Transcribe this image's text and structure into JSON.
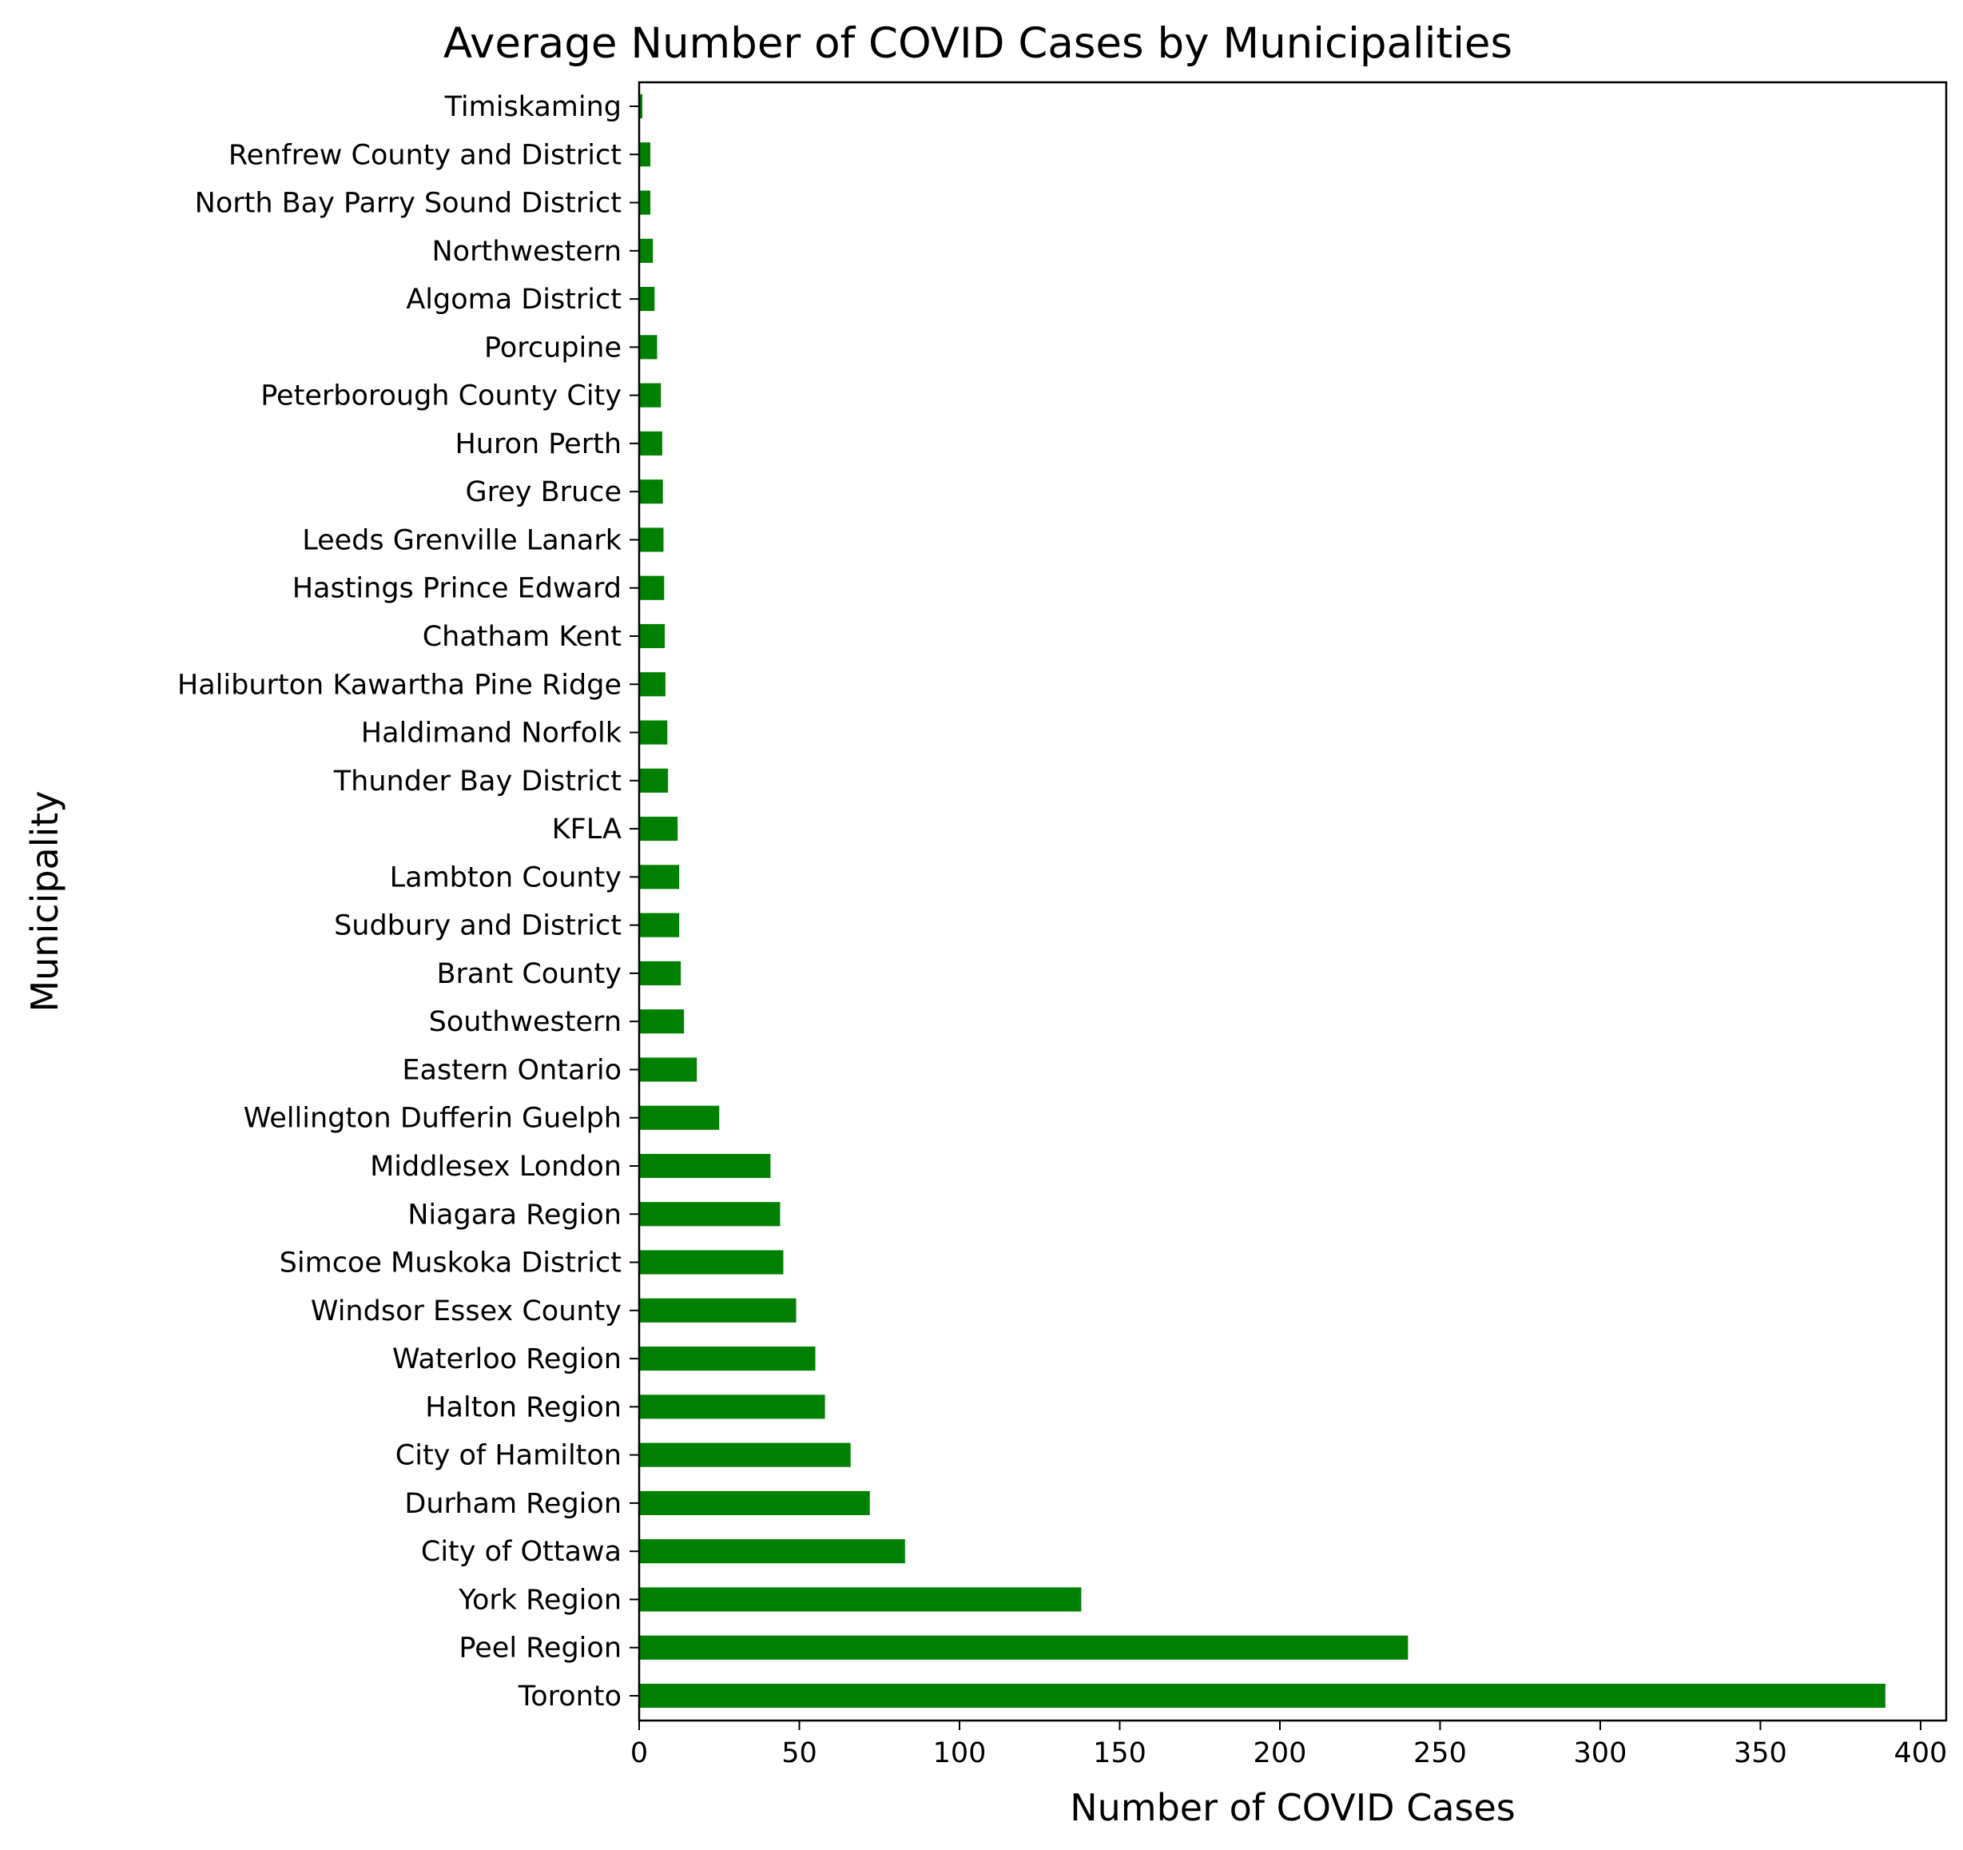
{
  "chart_data": {
    "type": "bar",
    "orientation": "horizontal",
    "title": "Average Number of COVID Cases by Municipalities",
    "xlabel": "Number of COVID Cases",
    "ylabel": "Municipality",
    "xlim": [
      0,
      408
    ],
    "xticks": [
      0,
      50,
      100,
      150,
      200,
      250,
      300,
      350,
      400
    ],
    "bar_color": "#008000",
    "grid": false,
    "legend": "none",
    "categories": [
      "Toronto",
      "Peel Region",
      "York Region",
      "City of Ottawa",
      "Durham Region",
      "City of Hamilton",
      "Halton Region",
      "Waterloo Region",
      "Windsor Essex County",
      "Simcoe Muskoka District",
      "Niagara Region",
      "Middlesex London",
      "Wellington Dufferin Guelph",
      "Eastern Ontario",
      "Southwestern",
      "Brant County",
      "Sudbury and District",
      "Lambton County",
      "KFLA",
      "Thunder Bay District",
      "Haldimand Norfolk",
      "Haliburton Kawartha Pine Ridge",
      "Chatham Kent",
      "Hastings Prince Edward",
      "Leeds Grenville Lanark",
      "Grey Bruce",
      "Huron Perth",
      "Peterborough County City",
      "Porcupine",
      "Algoma District",
      "Northwestern",
      "North Bay Parry Sound District",
      "Renfrew County and District",
      "Timiskaming"
    ],
    "values": [
      389,
      240,
      138,
      83,
      72,
      66,
      58,
      55,
      49,
      45,
      44,
      41,
      25,
      18,
      14,
      13,
      12.5,
      12.5,
      12,
      9,
      8.8,
      8.2,
      8,
      7.8,
      7.6,
      7.4,
      7.2,
      6.8,
      5.6,
      4.8,
      4.3,
      3.5,
      3.5,
      1
    ]
  }
}
